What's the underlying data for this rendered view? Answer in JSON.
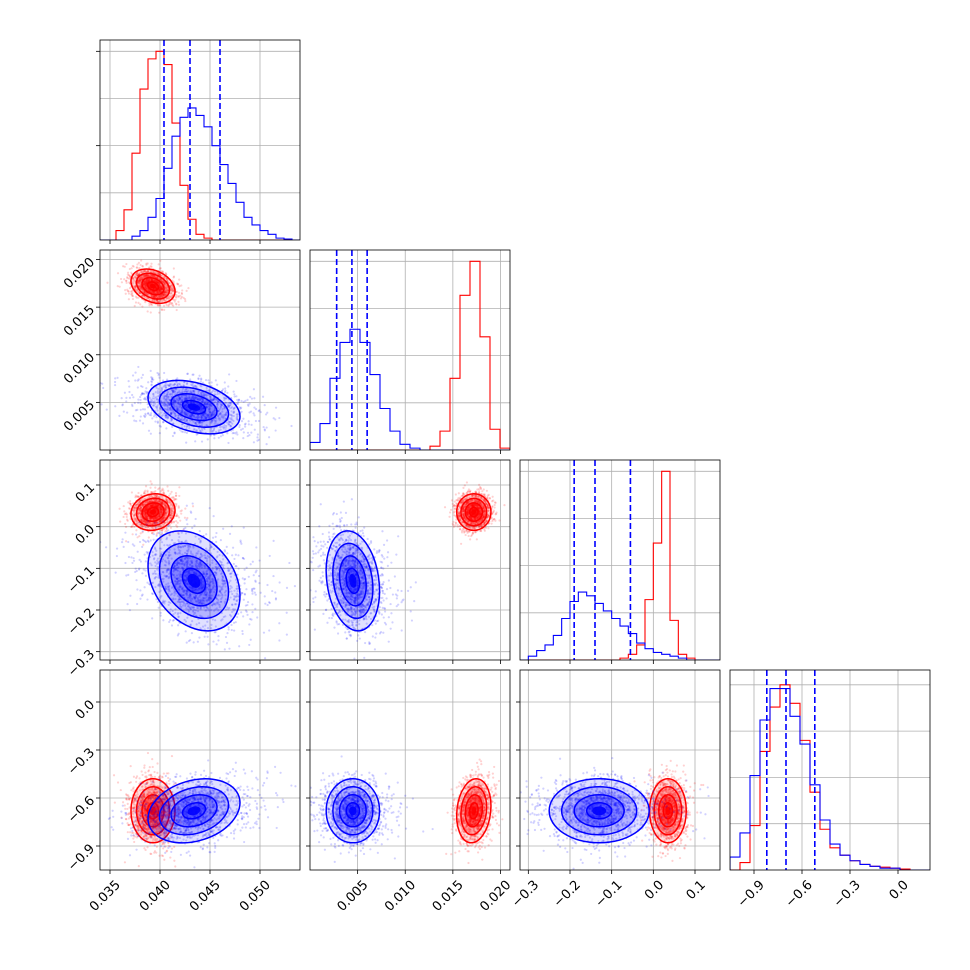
{
  "chart_data": {
    "type": "corner",
    "title": "",
    "parameters": [
      {
        "xlim": [
          0.034,
          0.054
        ],
        "ticks": [
          0.035,
          0.04,
          0.045,
          0.05
        ],
        "tick_labels": [
          "0.035",
          "0.040",
          "0.045",
          "0.050"
        ]
      },
      {
        "xlim": [
          0.0,
          0.021
        ],
        "ticks": [
          0.005,
          0.01,
          0.015,
          0.02
        ],
        "tick_labels": [
          "0.005",
          "0.010",
          "0.015",
          "0.020"
        ]
      },
      {
        "xlim": [
          -0.32,
          0.16
        ],
        "ticks": [
          -0.3,
          -0.2,
          -0.1,
          0.0,
          0.1
        ],
        "tick_labels": [
          "−0.3",
          "−0.2",
          "−0.1",
          "0.0",
          "0.1"
        ]
      },
      {
        "xlim": [
          -1.05,
          0.2
        ],
        "ticks": [
          -0.9,
          -0.6,
          -0.3,
          0.0
        ],
        "tick_labels": [
          "−0.9",
          "−0.6",
          "−0.3",
          "0.0"
        ]
      }
    ],
    "series": [
      {
        "color": "#ff0000",
        "means": [
          0.0393,
          0.0172,
          0.035,
          -0.68
        ],
        "stds": [
          0.0011,
          0.0009,
          0.022,
          0.1
        ],
        "corr": [
          [
            0,
            1,
            -0.3
          ],
          [
            0,
            2,
            0.1
          ],
          [
            1,
            3,
            0.15
          ]
        ]
      },
      {
        "color": "#0000ff",
        "means": [
          0.0434,
          0.0045,
          -0.13,
          -0.68
        ],
        "stds": [
          0.0023,
          0.0014,
          0.06,
          0.1
        ],
        "corr": [
          [
            0,
            1,
            -0.35
          ],
          [
            0,
            2,
            -0.3
          ],
          [
            1,
            2,
            -0.2
          ],
          [
            0,
            3,
            0.25
          ]
        ]
      }
    ],
    "histograms": [
      {
        "bins": [
          0.034,
          0.054,
          25
        ],
        "peak": 1.06,
        "red": [
          0,
          0,
          0.05,
          0.16,
          0.46,
          0.8,
          0.96,
          1.0,
          0.93,
          0.62,
          0.29,
          0.11,
          0.03,
          0.01,
          0,
          0,
          0,
          0,
          0,
          0,
          0,
          0,
          0,
          0,
          0
        ],
        "blue": [
          0,
          0,
          0,
          0,
          0.02,
          0.05,
          0.12,
          0.22,
          0.38,
          0.55,
          0.65,
          0.7,
          0.66,
          0.6,
          0.5,
          0.4,
          0.3,
          0.2,
          0.12,
          0.08,
          0.05,
          0.03,
          0.01,
          0.005,
          0
        ]
      },
      {
        "bins": [
          0.0,
          0.021,
          20
        ],
        "peak": 1.06,
        "red": [
          0,
          0,
          0,
          0,
          0,
          0,
          0,
          0,
          0,
          0,
          0,
          0,
          0.02,
          0.1,
          0.38,
          0.82,
          1.0,
          0.6,
          0.11,
          0.01
        ],
        "blue": [
          0.04,
          0.14,
          0.38,
          0.57,
          0.64,
          0.57,
          0.4,
          0.22,
          0.1,
          0.03,
          0.01,
          0,
          0,
          0,
          0,
          0,
          0,
          0,
          0,
          0
        ]
      },
      {
        "bins": [
          -0.32,
          0.16,
          24
        ],
        "peak": 1.06,
        "red": [
          0,
          0,
          0,
          0,
          0,
          0,
          0,
          0,
          0,
          0,
          0,
          0,
          0.01,
          0.03,
          0.08,
          0.32,
          0.62,
          1.0,
          0.21,
          0.03,
          0.01,
          0,
          0,
          0
        ],
        "blue": [
          0,
          0.02,
          0.05,
          0.08,
          0.13,
          0.22,
          0.31,
          0.36,
          0.34,
          0.3,
          0.26,
          0.22,
          0.18,
          0.14,
          0.09,
          0.06,
          0.04,
          0.03,
          0.02,
          0.01,
          0,
          0,
          0,
          0
        ]
      },
      {
        "bins": [
          -1.05,
          0.2,
          20
        ],
        "peak": 1.08,
        "red": [
          0,
          0.04,
          0.24,
          0.64,
          0.88,
          1.0,
          0.9,
          0.7,
          0.42,
          0.22,
          0.12,
          0.08,
          0.05,
          0.03,
          0.02,
          0.015,
          0.01,
          0.005,
          0,
          0
        ],
        "blue": [
          0.07,
          0.2,
          0.51,
          0.81,
          0.98,
          0.98,
          0.83,
          0.68,
          0.46,
          0.27,
          0.14,
          0.08,
          0.05,
          0.03,
          0.02,
          0.01,
          0.01,
          0,
          0,
          0
        ]
      }
    ],
    "medians": [
      [
        0.0404,
        0.043,
        0.046
      ],
      [
        0.0028,
        0.0044,
        0.006
      ],
      [
        -0.19,
        -0.14,
        -0.055
      ],
      [
        -0.82,
        -0.7,
        -0.52
      ]
    ],
    "median_color": "#0000ff",
    "grid": true,
    "legend": "none"
  }
}
